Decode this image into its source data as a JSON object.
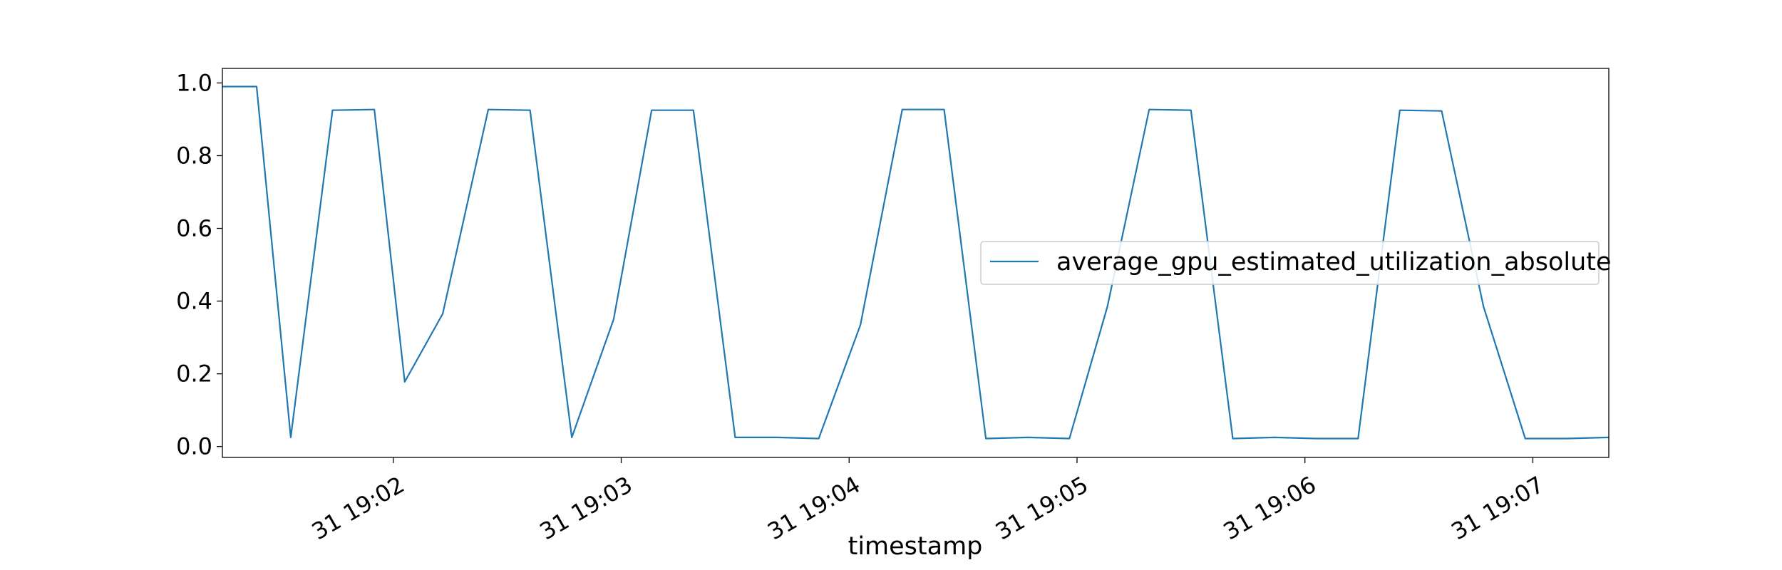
{
  "chart_data": {
    "type": "line",
    "xlabel": "timestamp",
    "ylabel": "",
    "x_tick_labels": [
      "31 19:02",
      "31 19:03",
      "31 19:04",
      "31 19:05",
      "31 19:06",
      "31 19:07"
    ],
    "x_tick_times": [
      "19:02:00",
      "19:03:00",
      "19:04:00",
      "19:05:00",
      "19:06:00",
      "19:07:00"
    ],
    "xlim": [
      "19:01:15",
      "19:07:20"
    ],
    "ylim": [
      -0.03,
      1.04
    ],
    "y_ticks": [
      0.0,
      0.2,
      0.4,
      0.6,
      0.8,
      1.0
    ],
    "y_tick_labels": [
      "0.0",
      "0.2",
      "0.4",
      "0.6",
      "0.8",
      "1.0"
    ],
    "grid": false,
    "legend_position": "center-right",
    "color": "#1f77b4",
    "series": [
      {
        "name": "average_gpu_estimated_utilization_absolute",
        "x": [
          "19:01:15",
          "19:01:24",
          "19:01:33",
          "19:01:44",
          "19:01:55",
          "19:02:03",
          "19:02:13",
          "19:02:25",
          "19:02:36",
          "19:02:47",
          "19:02:58",
          "19:03:08",
          "19:03:19",
          "19:03:30",
          "19:03:41",
          "19:03:52",
          "19:04:03",
          "19:04:14",
          "19:04:25",
          "19:04:36",
          "19:04:47",
          "19:04:58",
          "19:05:08",
          "19:05:19",
          "19:05:30",
          "19:05:41",
          "19:05:52",
          "19:06:03",
          "19:06:14",
          "19:06:25",
          "19:06:36",
          "19:06:47",
          "19:06:58",
          "19:07:09",
          "19:07:20"
        ],
        "values": [
          0.99,
          0.99,
          0.025,
          0.925,
          0.927,
          0.178,
          0.365,
          0.927,
          0.925,
          0.025,
          0.35,
          0.925,
          0.925,
          0.025,
          0.025,
          0.022,
          0.335,
          0.927,
          0.927,
          0.022,
          0.025,
          0.022,
          0.385,
          0.927,
          0.925,
          0.022,
          0.025,
          0.022,
          0.022,
          0.925,
          0.923,
          0.385,
          0.022,
          0.022,
          0.025
        ]
      }
    ]
  }
}
